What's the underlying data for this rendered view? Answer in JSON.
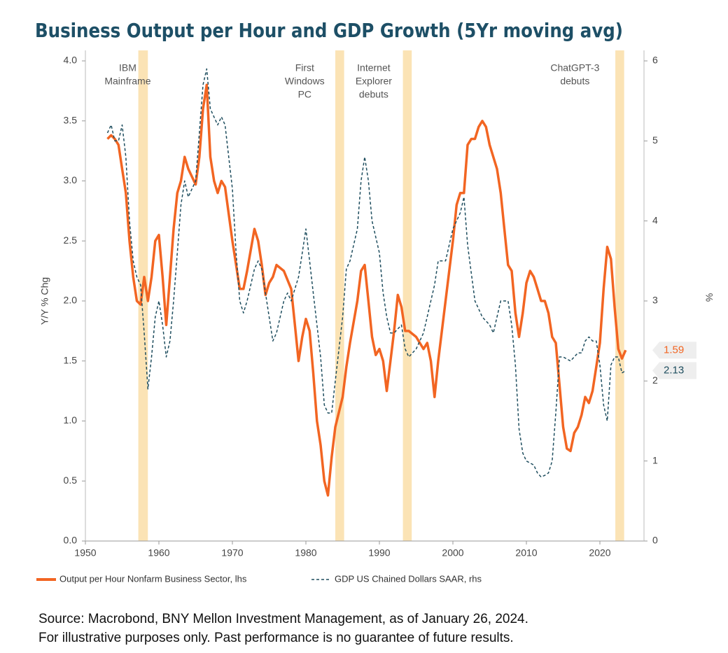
{
  "chart_data": {
    "type": "line",
    "title": "Business Output per Hour and GDP Growth (5Yr moving avg)",
    "ylabel": "Y/Y % Chg",
    "y2label": "%",
    "xlim": [
      1950,
      2026
    ],
    "xticks": [
      1950,
      1960,
      1970,
      1980,
      1990,
      2000,
      2010,
      2020
    ],
    "ylim": [
      0,
      4
    ],
    "yticks": [
      {
        "value": 0,
        "label": "0.0"
      },
      0.5,
      {
        "value": 1,
        "label": "1.0"
      },
      1.5,
      {
        "value": 2,
        "label": "2.0"
      },
      2.5,
      {
        "value": 3,
        "label": "3.0"
      },
      3.5,
      {
        "value": 4,
        "label": "4.0"
      }
    ],
    "y2lim": [
      0,
      6
    ],
    "y2ticks": [
      0,
      1,
      2,
      3,
      4,
      5,
      6
    ],
    "events": [
      {
        "span": [
          1957.2,
          1958.5
        ],
        "label": [
          "IBM",
          "Mainframe"
        ]
      },
      {
        "span": [
          1984.0,
          1985.2
        ],
        "label": [
          "First",
          "Windows",
          "PC"
        ]
      },
      {
        "span": [
          1993.2,
          1994.4
        ],
        "label": [
          "Internet",
          "Explorer",
          "debuts"
        ]
      },
      {
        "span": [
          2022.1,
          2023.3
        ],
        "label": [
          "ChatGPT-3",
          "debuts"
        ]
      }
    ],
    "series": [
      {
        "name": "Output per Hour Nonfarm Business Sector, lhs",
        "color": "#f26522",
        "axis": "y",
        "x": [
          1953,
          1953.5,
          1954,
          1954.5,
          1955,
          1955.5,
          1956,
          1956.5,
          1957,
          1957.5,
          1958,
          1958.5,
          1959,
          1959.5,
          1960,
          1960.5,
          1961,
          1961.5,
          1962,
          1962.5,
          1963,
          1963.5,
          1964,
          1965,
          1965.5,
          1966,
          1966.5,
          1967,
          1967.5,
          1968,
          1968.5,
          1969,
          1970,
          1970.5,
          1971,
          1971.5,
          1972,
          1973,
          1973.5,
          1974,
          1974.5,
          1975,
          1975.5,
          1976,
          1977,
          1978,
          1978.5,
          1979,
          1979.5,
          1980,
          1980.5,
          1981,
          1981.5,
          1982,
          1982.5,
          1983,
          1983.5,
          1984,
          1985,
          1985.5,
          1986,
          1987,
          1987.5,
          1988,
          1988.5,
          1989,
          1989.5,
          1990,
          1990.5,
          1991,
          1991.5,
          1992,
          1992.5,
          1993,
          1993.5,
          1994,
          1995,
          1996,
          1996.5,
          1997,
          1997.5,
          1998,
          1999,
          2000,
          2000.5,
          2001,
          2001.5,
          2002,
          2002.5,
          2003,
          2003.5,
          2004,
          2004.5,
          2005,
          2006,
          2006.5,
          2007,
          2007.5,
          2008,
          2008.5,
          2009,
          2009.5,
          2010,
          2010.5,
          2011,
          2011.5,
          2012,
          2012.5,
          2013,
          2013.5,
          2014,
          2014.5,
          2015,
          2015.5,
          2016,
          2016.5,
          2017,
          2017.5,
          2018,
          2018.5,
          2019,
          2019.5,
          2020,
          2020.5,
          2021,
          2021.5,
          2022,
          2022.5,
          2023,
          2023.5
        ],
        "values": [
          3.35,
          3.38,
          3.35,
          3.3,
          3.1,
          2.9,
          2.5,
          2.2,
          2.0,
          1.97,
          2.2,
          2.0,
          2.2,
          2.5,
          2.55,
          2.2,
          1.8,
          2.2,
          2.6,
          2.9,
          3.0,
          3.2,
          3.1,
          2.97,
          3.2,
          3.6,
          3.8,
          3.2,
          3.0,
          2.9,
          3.0,
          2.95,
          2.5,
          2.3,
          2.1,
          2.1,
          2.25,
          2.6,
          2.5,
          2.3,
          2.05,
          2.15,
          2.2,
          2.3,
          2.25,
          2.1,
          1.8,
          1.5,
          1.7,
          1.85,
          1.75,
          1.4,
          1.0,
          0.8,
          0.5,
          0.38,
          0.7,
          0.95,
          1.2,
          1.45,
          1.65,
          2.0,
          2.25,
          2.3,
          2.0,
          1.7,
          1.55,
          1.6,
          1.5,
          1.25,
          1.5,
          1.75,
          2.05,
          1.95,
          1.75,
          1.75,
          1.7,
          1.6,
          1.65,
          1.5,
          1.2,
          1.5,
          2.0,
          2.5,
          2.8,
          2.9,
          2.9,
          3.3,
          3.35,
          3.35,
          3.45,
          3.5,
          3.45,
          3.3,
          3.1,
          2.9,
          2.6,
          2.3,
          2.25,
          1.9,
          1.7,
          1.9,
          2.15,
          2.25,
          2.2,
          2.1,
          2.0,
          2.0,
          1.9,
          1.7,
          1.65,
          1.3,
          0.95,
          0.77,
          0.75,
          0.9,
          0.95,
          1.05,
          1.2,
          1.15,
          1.25,
          1.45,
          1.65,
          2.1,
          2.45,
          2.35,
          1.95,
          1.6,
          1.52,
          1.59
        ]
      },
      {
        "name": "GDP US Chained Dollars SAAR, rhs",
        "color": "#1f4e5f",
        "axis": "y2",
        "x": [
          1953,
          1953.5,
          1954,
          1954.5,
          1955,
          1955.5,
          1956,
          1956.5,
          1957,
          1957.5,
          1958,
          1958.5,
          1959,
          1959.5,
          1960,
          1960.5,
          1961,
          1961.5,
          1962,
          1962.5,
          1963,
          1963.5,
          1964,
          1965,
          1965.5,
          1966,
          1966.5,
          1967,
          1968,
          1968.5,
          1969,
          1970,
          1970.5,
          1971,
          1971.5,
          1972,
          1973,
          1973.5,
          1974,
          1975,
          1975.5,
          1976,
          1977,
          1977.5,
          1978,
          1979,
          1979.5,
          1980,
          1980.5,
          1981,
          1981.5,
          1982,
          1982.5,
          1983,
          1983.5,
          1984,
          1985,
          1985.5,
          1986,
          1987,
          1987.5,
          1988,
          1988.5,
          1989,
          1990,
          1990.5,
          1991,
          1991.5,
          1992,
          1993,
          1993.5,
          1994,
          1995,
          1996,
          1997,
          1997.5,
          1998,
          1999,
          2000,
          2001,
          2001.5,
          2002,
          2003,
          2003.5,
          2004,
          2005,
          2005.5,
          2006,
          2006.5,
          2007,
          2007.5,
          2008,
          2008.5,
          2009,
          2009.5,
          2010,
          2011,
          2011.5,
          2012,
          2012.5,
          2013,
          2013.5,
          2014,
          2014.5,
          2015,
          2016,
          2016.5,
          2017,
          2017.5,
          2018,
          2018.5,
          2019,
          2019.5,
          2020,
          2020.5,
          2021,
          2021.5,
          2022,
          2022.5,
          2023,
          2023.5
        ],
        "values": [
          5.1,
          5.2,
          5.0,
          5.0,
          5.2,
          4.8,
          4.0,
          3.5,
          3.3,
          3.2,
          2.6,
          1.9,
          2.3,
          2.8,
          3.0,
          2.7,
          2.3,
          2.5,
          3.0,
          3.6,
          4.2,
          4.5,
          4.3,
          4.5,
          5.1,
          5.7,
          5.9,
          5.4,
          5.2,
          5.3,
          5.2,
          4.4,
          3.6,
          3.0,
          2.85,
          3.0,
          3.4,
          3.5,
          3.4,
          2.8,
          2.5,
          2.6,
          3.0,
          3.1,
          3.0,
          3.3,
          3.6,
          3.9,
          3.5,
          3.1,
          2.7,
          2.3,
          1.7,
          1.6,
          1.6,
          2.0,
          2.8,
          3.4,
          3.5,
          3.9,
          4.5,
          4.8,
          4.5,
          4.0,
          3.6,
          3.1,
          2.8,
          2.6,
          2.6,
          2.7,
          2.4,
          2.3,
          2.4,
          2.6,
          3.0,
          3.2,
          3.5,
          3.5,
          3.9,
          4.1,
          4.3,
          3.7,
          3.0,
          2.9,
          2.8,
          2.7,
          2.6,
          2.8,
          3.0,
          3.0,
          3.0,
          2.7,
          2.2,
          1.4,
          1.1,
          1.0,
          0.95,
          0.85,
          0.8,
          0.82,
          0.85,
          1.0,
          1.6,
          2.3,
          2.3,
          2.25,
          2.3,
          2.35,
          2.35,
          2.5,
          2.55,
          2.5,
          2.5,
          2.2,
          1.7,
          1.5,
          2.2,
          2.3,
          2.3,
          2.1,
          2.13
        ]
      }
    ],
    "source": [
      "Source: Macrobond, BNY Mellon Investment Management, as of January 26, 2024.",
      "For illustrative purposes only. Past performance is no guarantee of future results."
    ]
  }
}
